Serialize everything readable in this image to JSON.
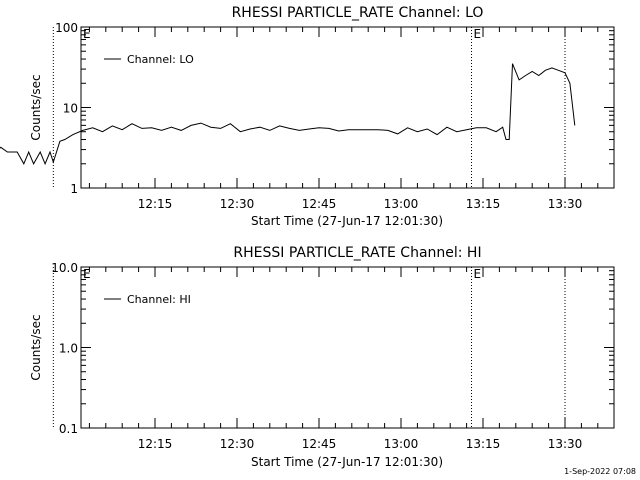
{
  "footer": {
    "timestamp": "1-Sep-2022 07:08"
  },
  "chart_data": [
    {
      "type": "line",
      "title": "RHESSI PARTICLE_RATE Channel: LO",
      "xlabel": "Start Time (27-Jun-17 12:01:30)",
      "ylabel": "Counts/sec",
      "y_scale": "log",
      "ylim": [
        1,
        100
      ],
      "y_ticks": [
        {
          "value": 1,
          "label": "1"
        },
        {
          "value": 10,
          "label": "10"
        },
        {
          "value": 100,
          "label": "100"
        }
      ],
      "x_unit": "minutes since 12:00",
      "xlim": [
        3,
        40
      ],
      "x_ticks": [
        {
          "value": 15,
          "label": "12:15"
        },
        {
          "value": 20,
          "label": "12:30"
        },
        {
          "value": 25,
          "label": "12:45"
        },
        {
          "value": 30,
          "label": "13:00"
        },
        {
          "value": 35,
          "label": "13:15"
        },
        {
          "value": 40,
          "label": "13:30"
        }
      ],
      "markers": [
        {
          "x": 8.8,
          "label": ""
        },
        {
          "x": 34.3,
          "label": "E"
        },
        {
          "x": 40.0,
          "label": ""
        }
      ],
      "corner_label": "E",
      "legend": {
        "position": "top-left",
        "entries": [
          "Channel: LO"
        ]
      },
      "series": [
        {
          "name": "Channel: LO",
          "x": [
            3.0,
            3.2,
            3.5,
            4.0,
            4.3,
            4.6,
            5.0,
            5.3,
            5.6,
            6.0,
            6.3,
            6.6,
            7.0,
            7.3,
            7.6,
            8.0,
            8.3,
            8.6,
            8.8,
            9.2,
            9.5,
            10.0,
            10.6,
            11.2,
            11.8,
            12.4,
            13.0,
            13.6,
            14.2,
            14.8,
            15.4,
            16.0,
            16.6,
            17.2,
            17.8,
            18.4,
            19.0,
            19.6,
            20.2,
            20.8,
            21.4,
            22.0,
            22.6,
            23.2,
            23.8,
            24.4,
            25.0,
            25.6,
            26.2,
            26.8,
            27.4,
            28.0,
            28.6,
            29.2,
            29.8,
            30.4,
            31.0,
            31.6,
            32.2,
            32.8,
            33.4,
            34.0,
            34.6,
            35.2,
            35.8,
            36.2,
            36.4,
            36.6,
            36.8,
            37.2,
            37.6,
            38.0,
            38.4,
            38.8,
            39.2,
            39.6,
            40.0,
            40.3,
            40.6
          ],
          "values": [
            3.3,
            2.8,
            3.8,
            2.8,
            3.8,
            2.9,
            3.9,
            2.8,
            3.2,
            2.8,
            2.8,
            2.8,
            2.0,
            2.8,
            2.0,
            2.8,
            2.0,
            2.8,
            2.1,
            3.8,
            4.0,
            4.6,
            5.2,
            5.6,
            5.0,
            5.9,
            5.3,
            6.3,
            5.5,
            5.6,
            5.2,
            5.7,
            5.2,
            6.0,
            6.4,
            5.7,
            5.5,
            6.3,
            5.0,
            5.4,
            5.7,
            5.2,
            5.9,
            5.5,
            5.2,
            5.4,
            5.6,
            5.5,
            5.1,
            5.3,
            5.3,
            5.3,
            5.3,
            5.2,
            4.7,
            5.6,
            5.0,
            5.4,
            4.6,
            5.7,
            5.0,
            5.3,
            5.6,
            5.6,
            5.0,
            5.7,
            4.0,
            4.0,
            35.0,
            22.0,
            25.0,
            28.0,
            25.0,
            29.0,
            31.0,
            29.0,
            27.0,
            20.0,
            6.0
          ]
        }
      ]
    },
    {
      "type": "line",
      "title": "RHESSI PARTICLE_RATE Channel: HI",
      "xlabel": "Start Time (27-Jun-17 12:01:30)",
      "ylabel": "Counts/sec",
      "y_scale": "log",
      "ylim": [
        0.1,
        10
      ],
      "y_ticks": [
        {
          "value": 0.1,
          "label": "0.1"
        },
        {
          "value": 1,
          "label": "1.0"
        },
        {
          "value": 10,
          "label": "10.0"
        }
      ],
      "x_unit": "minutes since 12:00",
      "xlim": [
        3,
        40
      ],
      "x_ticks": [
        {
          "value": 15,
          "label": "12:15"
        },
        {
          "value": 20,
          "label": "12:30"
        },
        {
          "value": 25,
          "label": "12:45"
        },
        {
          "value": 30,
          "label": "13:00"
        },
        {
          "value": 35,
          "label": "13:15"
        },
        {
          "value": 40,
          "label": "13:30"
        }
      ],
      "markers": [
        {
          "x": 8.8,
          "label": ""
        },
        {
          "x": 34.3,
          "label": "E"
        },
        {
          "x": 40.0,
          "label": ""
        }
      ],
      "corner_label": "E",
      "legend": {
        "position": "top-left",
        "entries": [
          "Channel: HI"
        ]
      },
      "series": [
        {
          "name": "Channel: HI",
          "x": [],
          "values": []
        }
      ]
    }
  ]
}
